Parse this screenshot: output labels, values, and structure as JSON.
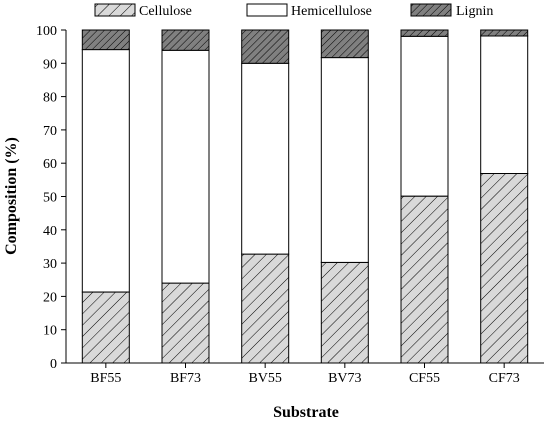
{
  "chart_data": {
    "type": "bar",
    "stacked": true,
    "title": "",
    "xlabel": "Substrate",
    "ylabel": "Composition (%)",
    "ylim": [
      0,
      100
    ],
    "yticks": [
      0,
      10,
      20,
      30,
      40,
      50,
      60,
      70,
      80,
      90,
      100
    ],
    "grid": false,
    "legend_position": "top",
    "categories": [
      "BF55",
      "BF73",
      "BV55",
      "BV73",
      "CF55",
      "CF73"
    ],
    "series": [
      {
        "name": "Cellulose",
        "pattern": "diagonal-hatch",
        "color": "#d9d9d9",
        "values": [
          21.3,
          24.0,
          32.7,
          30.2,
          50.1,
          56.9
        ]
      },
      {
        "name": "Hemicellulose",
        "pattern": "none",
        "color": "#ffffff",
        "values": [
          72.8,
          69.9,
          57.3,
          61.5,
          48.0,
          41.3
        ]
      },
      {
        "name": "Lignin",
        "pattern": "diagonal-hatch-dense",
        "color": "#808080",
        "values": [
          5.9,
          6.1,
          10.0,
          8.3,
          1.9,
          1.8
        ]
      }
    ]
  }
}
